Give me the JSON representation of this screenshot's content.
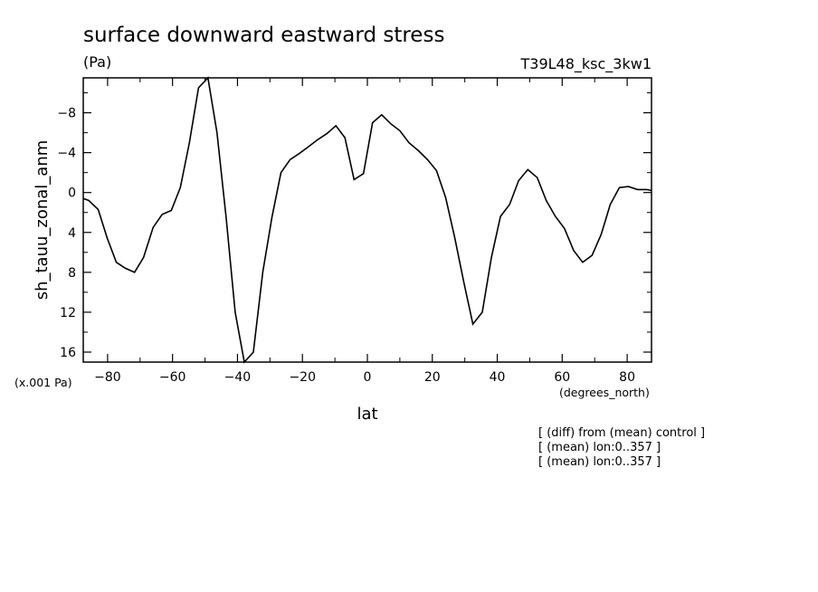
{
  "chart_data": {
    "type": "line",
    "title": "surface downward eastward stress",
    "units_label": "(Pa)",
    "run_label": "T39L48_ksc_3kw1",
    "ylabel": "sh_tauu_zonal_anm",
    "xlabel": "lat",
    "x_units": "(degrees_north)",
    "y_scale_note": "(x.001 Pa)",
    "xlim": [
      -87.5,
      87.5
    ],
    "ylim": [
      17,
      -11.5
    ],
    "x_ticks": [
      -80,
      -60,
      -40,
      -20,
      0,
      20,
      40,
      60,
      80
    ],
    "y_ticks": [
      -8,
      -4,
      0,
      4,
      8,
      12,
      16
    ],
    "grid": false,
    "series": [
      {
        "x": [
          -87.5,
          -85.8,
          -82.9,
          -80.1,
          -77.3,
          -74.5,
          -71.7,
          -68.9,
          -66.0,
          -63.2,
          -60.4,
          -57.6,
          -54.8,
          -52.0,
          -49.1,
          -46.3,
          -43.5,
          -40.7,
          -37.9,
          -35.1,
          -32.2,
          -29.4,
          -26.6,
          -23.8,
          -21.0,
          -18.1,
          -15.3,
          -12.5,
          -9.7,
          -6.9,
          -4.1,
          -1.2,
          1.6,
          4.4,
          7.2,
          10.0,
          12.8,
          15.7,
          18.5,
          21.3,
          24.1,
          26.9,
          29.7,
          32.5,
          35.4,
          38.2,
          41.0,
          43.8,
          46.6,
          49.4,
          52.3,
          55.1,
          57.9,
          60.7,
          63.5,
          66.3,
          69.2,
          72.0,
          74.8,
          77.6,
          80.4,
          83.2,
          86.0,
          87.5
        ],
        "y": [
          0.6,
          0.8,
          1.7,
          4.6,
          7.0,
          7.6,
          8.0,
          6.5,
          3.5,
          2.2,
          1.8,
          -0.5,
          -5.0,
          -10.5,
          -11.5,
          -6.0,
          2.5,
          12.0,
          17.0,
          16.0,
          8.0,
          2.5,
          -2.0,
          -3.3,
          -3.9,
          -4.6,
          -5.3,
          -5.9,
          -6.7,
          -5.5,
          -1.3,
          -1.9,
          -7.0,
          -7.8,
          -6.9,
          -6.2,
          -5.0,
          -4.2,
          -3.3,
          -2.2,
          0.5,
          4.5,
          9.0,
          13.2,
          12.0,
          6.5,
          2.4,
          1.2,
          -1.2,
          -2.3,
          -1.5,
          0.8,
          2.4,
          3.6,
          5.8,
          7.0,
          6.3,
          4.2,
          1.2,
          -0.5,
          -0.6,
          -0.3,
          -0.3,
          -0.2
        ]
      }
    ]
  },
  "annotations": [
    "[ (diff) from (mean) control ]",
    "[ (mean) lon:0..357 ]",
    "[ (mean) lon:0..357 ]"
  ]
}
